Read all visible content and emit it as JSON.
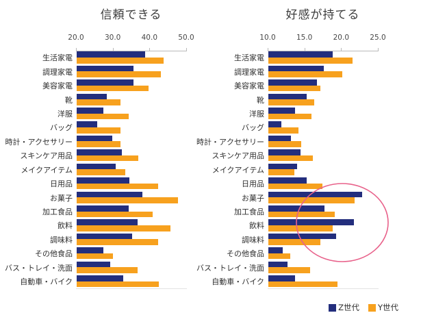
{
  "page": {
    "background": "#ffffff"
  },
  "colors": {
    "gen_z": "#232e7d",
    "gen_y": "#f7a11e",
    "axis": "#b9b9b9",
    "highlight_circle": "#e8618a"
  },
  "legend": {
    "items": [
      {
        "label": "Z世代",
        "color": "#232e7d"
      },
      {
        "label": "Y世代",
        "color": "#f7a11e"
      }
    ]
  },
  "annotation": {
    "shape": "ellipse",
    "meaning": "highlight of food-category rows in right chart",
    "color": "#e8618a"
  },
  "chart_data": [
    {
      "type": "bar",
      "orientation": "horizontal",
      "title": "信頼できる",
      "axis": {
        "min": 20,
        "max": 50,
        "tick_labels": [
          "20.0",
          "30.0",
          "40.0",
          "50.0"
        ],
        "position": "top"
      },
      "grid": false,
      "legend_position": "bottom-right",
      "categories": [
        "生活家電",
        "調理家電",
        "美容家電",
        "靴",
        "洋服",
        "バッグ",
        "時計・アクセサリー",
        "スキンケア用品",
        "メイクアイテム",
        "日用品",
        "お菓子",
        "加工食品",
        "飲料",
        "調味料",
        "その他食品",
        "バス・トレイ・洗面",
        "自動車・バイク"
      ],
      "series": [
        {
          "name": "Z世代",
          "color": "#232e7d",
          "values": [
            38.8,
            35.5,
            35.5,
            28.2,
            27.3,
            25.6,
            29.7,
            32.3,
            30.8,
            34.5,
            37.9,
            34.2,
            36.6,
            35.1,
            27.4,
            29.3,
            32.7
          ]
        },
        {
          "name": "Y世代",
          "color": "#f7a11e",
          "values": [
            43.8,
            43.1,
            39.6,
            32.1,
            34.3,
            32.1,
            32.1,
            36.8,
            33.4,
            42.3,
            47.6,
            40.7,
            45.7,
            42.2,
            29.9,
            36.6,
            42.5
          ]
        }
      ]
    },
    {
      "type": "bar",
      "orientation": "horizontal",
      "title": "好感が持てる",
      "axis": {
        "min": 10,
        "max": 25,
        "tick_labels": [
          "10.0",
          "15.0",
          "20.0",
          "25.0"
        ],
        "position": "top"
      },
      "grid": false,
      "legend_position": "bottom-right",
      "categories": [
        "生活家電",
        "調理家電",
        "美容家電",
        "靴",
        "洋服",
        "バッグ",
        "時計・アクセサリー",
        "スキンケア用品",
        "メイクアイテム",
        "日用品",
        "お菓子",
        "加工食品",
        "飲料",
        "調味料",
        "その他食品",
        "バス・トレイ・洗面",
        "自動車・バイク"
      ],
      "series": [
        {
          "name": "Z世代",
          "color": "#232e7d",
          "values": [
            18.8,
            17.6,
            16.7,
            15.3,
            13.7,
            11.8,
            13.1,
            14.4,
            14.0,
            15.3,
            22.8,
            17.7,
            21.7,
            19.3,
            12.0,
            12.7,
            13.7
          ]
        },
        {
          "name": "Y世代",
          "color": "#f7a11e",
          "values": [
            21.5,
            20.1,
            17.1,
            16.3,
            15.9,
            14.1,
            14.5,
            16.1,
            13.6,
            17.4,
            21.8,
            19.1,
            18.8,
            17.1,
            13.0,
            15.7,
            19.5
          ]
        }
      ]
    }
  ],
  "layout_note": ""
}
